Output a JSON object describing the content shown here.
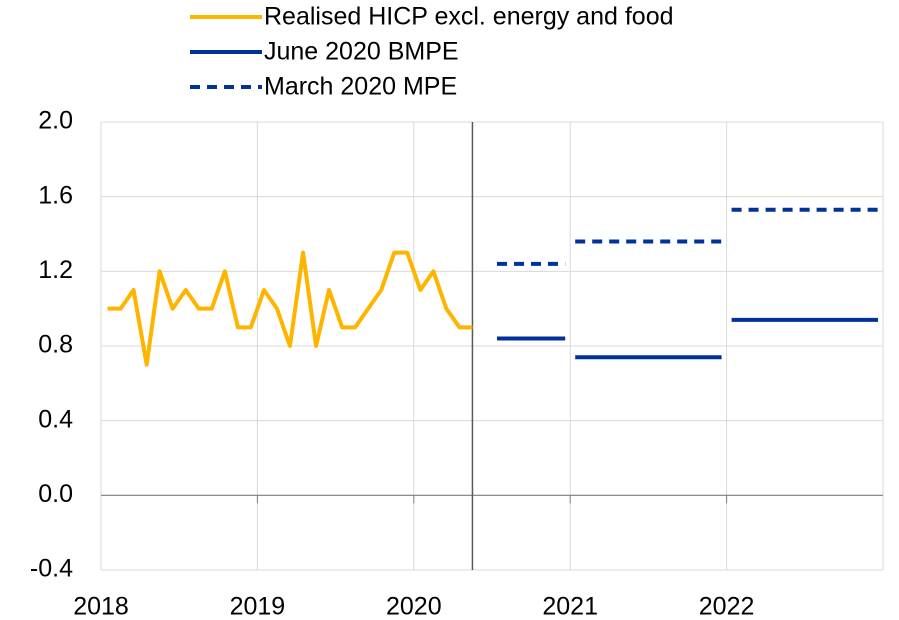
{
  "chart_data": {
    "type": "line",
    "xlim": [
      2018,
      2023
    ],
    "xticks": [
      2018,
      2019,
      2020,
      2021,
      2022
    ],
    "ylim": [
      -0.4,
      2.0
    ],
    "yticks": [
      {
        "value": -0.4,
        "label": "-0.4"
      },
      {
        "value": 0,
        "label": "0.0"
      },
      0.4,
      0.8,
      1.2,
      1.6,
      {
        "value": 2.0,
        "label": "2.0"
      }
    ],
    "grid": true,
    "series": [
      {
        "name": "Realised HICP excl. energy and food",
        "color": "#ffb400",
        "style": "solid",
        "x": [
          2018.042,
          2018.125,
          2018.208,
          2018.292,
          2018.375,
          2018.458,
          2018.542,
          2018.625,
          2018.708,
          2018.792,
          2018.875,
          2018.958,
          2019.042,
          2019.125,
          2019.208,
          2019.292,
          2019.375,
          2019.458,
          2019.542,
          2019.625,
          2019.708,
          2019.792,
          2019.875,
          2019.958,
          2020.042,
          2020.125,
          2020.208,
          2020.292,
          2020.375
        ],
        "values": [
          1.0,
          1.0,
          1.1,
          0.7,
          1.2,
          1.0,
          1.1,
          1.0,
          1.0,
          1.2,
          0.9,
          0.9,
          1.1,
          1.0,
          0.8,
          1.3,
          0.8,
          1.1,
          0.9,
          0.9,
          1.0,
          1.1,
          1.3,
          1.3,
          1.1,
          1.2,
          1.0,
          0.9,
          0.9
        ]
      },
      {
        "name": "June 2020 BMPE",
        "color": "#003299",
        "style": "solid",
        "step": true,
        "x": [
          2020.5,
          2021,
          2022
        ],
        "values": [
          0.84,
          0.74,
          0.94
        ]
      },
      {
        "name": "March 2020 MPE",
        "color": "#003299",
        "style": "dashed",
        "step": true,
        "x": [
          2020.5,
          2021,
          2022
        ],
        "values": [
          1.24,
          1.36,
          1.53
        ]
      }
    ]
  }
}
